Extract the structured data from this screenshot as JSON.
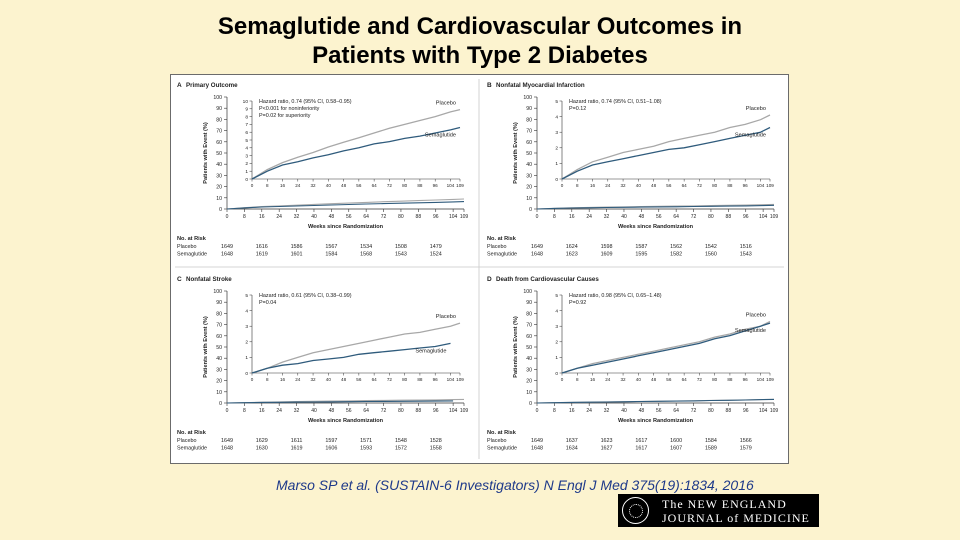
{
  "slide": {
    "title_line1": "Semaglutide and Cardiovascular Outcomes in",
    "title_line2": "Patients with Type 2 Diabetes",
    "citation": "Marso SP et al. (SUSTAIN-6 Investigators) N Engl J Med 375(19):1834, 2016",
    "logo_line1": "The NEW ENGLAND",
    "logo_line2": "JOURNAL of MEDICINE",
    "background": "#fcf3cf"
  },
  "colors": {
    "placebo": "#a8a8a8",
    "semaglutide": "#2f5b7c",
    "title_text": "#000000",
    "citation_text": "#1f3a8a"
  },
  "chart_data": [
    {
      "type": "line",
      "panel_label": "A",
      "title": "Primary Outcome",
      "xlabel": "Weeks since Randomization",
      "ylabel": "Patients with Event (%)",
      "xticks": [
        0,
        8,
        16,
        24,
        32,
        40,
        48,
        56,
        64,
        72,
        80,
        88,
        96,
        104,
        109
      ],
      "ylim": [
        0,
        100
      ],
      "yticks": [
        0,
        10,
        20,
        30,
        40,
        50,
        60,
        70,
        80,
        90,
        100
      ],
      "inset": {
        "xlim": [
          0,
          109
        ],
        "ylim": [
          0,
          10
        ],
        "yticks": [
          0,
          1,
          2,
          3,
          4,
          5,
          6,
          7,
          8,
          9,
          10
        ]
      },
      "annotations": [
        "Hazard ratio, 0.74 (95% CI, 0.58–0.95)",
        "P<0.001 for noninferiority",
        "P=0.02 for superiority"
      ],
      "series": [
        {
          "name": "Placebo",
          "x": [
            0,
            8,
            16,
            24,
            32,
            40,
            48,
            56,
            64,
            72,
            80,
            88,
            96,
            104,
            109
          ],
          "values": [
            0,
            1.2,
            2.1,
            2.8,
            3.4,
            4.1,
            4.7,
            5.3,
            5.9,
            6.5,
            7.0,
            7.5,
            8.0,
            8.6,
            8.9
          ]
        },
        {
          "name": "Semaglutide",
          "x": [
            0,
            8,
            16,
            24,
            32,
            40,
            48,
            56,
            64,
            72,
            80,
            88,
            96,
            104,
            109
          ],
          "values": [
            0,
            1.0,
            1.8,
            2.2,
            2.7,
            3.1,
            3.6,
            4.0,
            4.5,
            4.8,
            5.2,
            5.5,
            5.9,
            6.3,
            6.6
          ]
        }
      ],
      "risk_table": {
        "heading": "No. at Risk",
        "x": [
          0,
          16,
          32,
          48,
          64,
          80,
          96
        ],
        "rows": [
          {
            "name": "Placebo",
            "values": [
              "1649",
              "1616",
              "1586",
              "1567",
              "1534",
              "1508",
              "1479"
            ]
          },
          {
            "name": "Semaglutide",
            "values": [
              "1648",
              "1619",
              "1601",
              "1584",
              "1568",
              "1543",
              "1524"
            ]
          }
        ]
      }
    },
    {
      "type": "line",
      "panel_label": "B",
      "title": "Nonfatal Myocardial Infarction",
      "xlabel": "Weeks since Randomization",
      "ylabel": "Patients with Event (%)",
      "xticks": [
        0,
        8,
        16,
        24,
        32,
        40,
        48,
        56,
        64,
        72,
        80,
        88,
        96,
        104,
        109
      ],
      "ylim": [
        0,
        100
      ],
      "yticks": [
        0,
        10,
        20,
        30,
        40,
        50,
        60,
        70,
        80,
        90,
        100
      ],
      "inset": {
        "xlim": [
          0,
          109
        ],
        "ylim": [
          0,
          5
        ],
        "yticks": [
          0,
          1,
          2,
          3,
          4,
          5
        ]
      },
      "annotations": [
        "Hazard ratio, 0.74 (95% CI, 0.51–1.08)",
        "P=0.12"
      ],
      "series": [
        {
          "name": "Placebo",
          "x": [
            0,
            8,
            16,
            24,
            32,
            40,
            48,
            56,
            64,
            72,
            80,
            88,
            96,
            104,
            109
          ],
          "values": [
            0,
            0.6,
            1.1,
            1.4,
            1.7,
            1.9,
            2.1,
            2.4,
            2.6,
            2.8,
            3.0,
            3.3,
            3.5,
            3.8,
            4.1
          ]
        },
        {
          "name": "Semaglutide",
          "x": [
            0,
            8,
            16,
            24,
            32,
            40,
            48,
            56,
            64,
            72,
            80,
            88,
            96,
            104,
            109
          ],
          "values": [
            0,
            0.5,
            0.9,
            1.1,
            1.3,
            1.5,
            1.7,
            1.9,
            2.0,
            2.2,
            2.4,
            2.6,
            2.8,
            3.0,
            3.3
          ]
        }
      ],
      "risk_table": {
        "heading": "No. at Risk",
        "x": [
          0,
          16,
          32,
          48,
          64,
          80,
          96
        ],
        "rows": [
          {
            "name": "Placebo",
            "values": [
              "1649",
              "1624",
              "1598",
              "1587",
              "1562",
              "1542",
              "1516"
            ]
          },
          {
            "name": "Semaglutide",
            "values": [
              "1648",
              "1623",
              "1609",
              "1595",
              "1582",
              "1560",
              "1543"
            ]
          }
        ]
      }
    },
    {
      "type": "line",
      "panel_label": "C",
      "title": "Nonfatal Stroke",
      "xlabel": "Weeks since Randomization",
      "ylabel": "Patients with Event (%)",
      "xticks": [
        0,
        8,
        16,
        24,
        32,
        40,
        48,
        56,
        64,
        72,
        80,
        88,
        96,
        104,
        109
      ],
      "ylim": [
        0,
        100
      ],
      "yticks": [
        0,
        10,
        20,
        30,
        40,
        50,
        60,
        70,
        80,
        90,
        100
      ],
      "inset": {
        "xlim": [
          0,
          109
        ],
        "ylim": [
          0,
          5
        ],
        "yticks": [
          0,
          1,
          2,
          3,
          4,
          5
        ]
      },
      "annotations": [
        "Hazard ratio, 0.61 (95% CI, 0.38–0.99)",
        "P=0.04"
      ],
      "series": [
        {
          "name": "Placebo",
          "x": [
            0,
            8,
            16,
            24,
            32,
            40,
            48,
            56,
            64,
            72,
            80,
            88,
            96,
            104,
            109
          ],
          "values": [
            0,
            0.3,
            0.7,
            1.0,
            1.3,
            1.5,
            1.7,
            1.9,
            2.1,
            2.3,
            2.5,
            2.6,
            2.8,
            3.0,
            3.2
          ]
        },
        {
          "name": "Semaglutide",
          "x": [
            0,
            8,
            16,
            24,
            32,
            40,
            48,
            56,
            64,
            72,
            80,
            88,
            96,
            104
          ],
          "values": [
            0,
            0.3,
            0.5,
            0.6,
            0.8,
            0.9,
            1.0,
            1.2,
            1.3,
            1.4,
            1.5,
            1.6,
            1.7,
            1.9
          ]
        }
      ],
      "risk_table": {
        "heading": "No. at Risk",
        "x": [
          0,
          16,
          32,
          48,
          64,
          80,
          96
        ],
        "rows": [
          {
            "name": "Placebo",
            "values": [
              "1649",
              "1629",
              "1611",
              "1597",
              "1571",
              "1548",
              "1528"
            ]
          },
          {
            "name": "Semaglutide",
            "values": [
              "1648",
              "1630",
              "1619",
              "1606",
              "1593",
              "1572",
              "1558"
            ]
          }
        ]
      }
    },
    {
      "type": "line",
      "panel_label": "D",
      "title": "Death from Cardiovascular Causes",
      "xlabel": "Weeks since Randomization",
      "ylabel": "Patients with Event (%)",
      "xticks": [
        0,
        8,
        16,
        24,
        32,
        40,
        48,
        56,
        64,
        72,
        80,
        88,
        96,
        104,
        109
      ],
      "ylim": [
        0,
        100
      ],
      "yticks": [
        0,
        10,
        20,
        30,
        40,
        50,
        60,
        70,
        80,
        90,
        100
      ],
      "inset": {
        "xlim": [
          0,
          109
        ],
        "ylim": [
          0,
          5
        ],
        "yticks": [
          0,
          1,
          2,
          3,
          4,
          5
        ]
      },
      "annotations": [
        "Hazard ratio, 0.98 (95% CI, 0.65–1.48)",
        "P=0.92"
      ],
      "series": [
        {
          "name": "Placebo",
          "x": [
            0,
            8,
            16,
            24,
            32,
            40,
            48,
            56,
            64,
            72,
            80,
            88,
            96,
            104,
            109
          ],
          "values": [
            0,
            0.3,
            0.6,
            0.8,
            1.0,
            1.2,
            1.4,
            1.6,
            1.8,
            2.0,
            2.3,
            2.5,
            2.8,
            3.0,
            3.3
          ]
        },
        {
          "name": "Semaglutide",
          "x": [
            0,
            8,
            16,
            24,
            32,
            40,
            48,
            56,
            64,
            72,
            80,
            88,
            96,
            104,
            109
          ],
          "values": [
            0,
            0.3,
            0.5,
            0.7,
            0.9,
            1.1,
            1.3,
            1.5,
            1.7,
            1.9,
            2.2,
            2.4,
            2.7,
            3.0,
            3.2
          ]
        }
      ],
      "risk_table": {
        "heading": "No. at Risk",
        "x": [
          0,
          16,
          32,
          48,
          64,
          80,
          96
        ],
        "rows": [
          {
            "name": "Placebo",
            "values": [
              "1649",
              "1637",
              "1623",
              "1617",
              "1600",
              "1584",
              "1566"
            ]
          },
          {
            "name": "Semaglutide",
            "values": [
              "1648",
              "1634",
              "1627",
              "1617",
              "1607",
              "1589",
              "1579"
            ]
          }
        ]
      }
    }
  ]
}
